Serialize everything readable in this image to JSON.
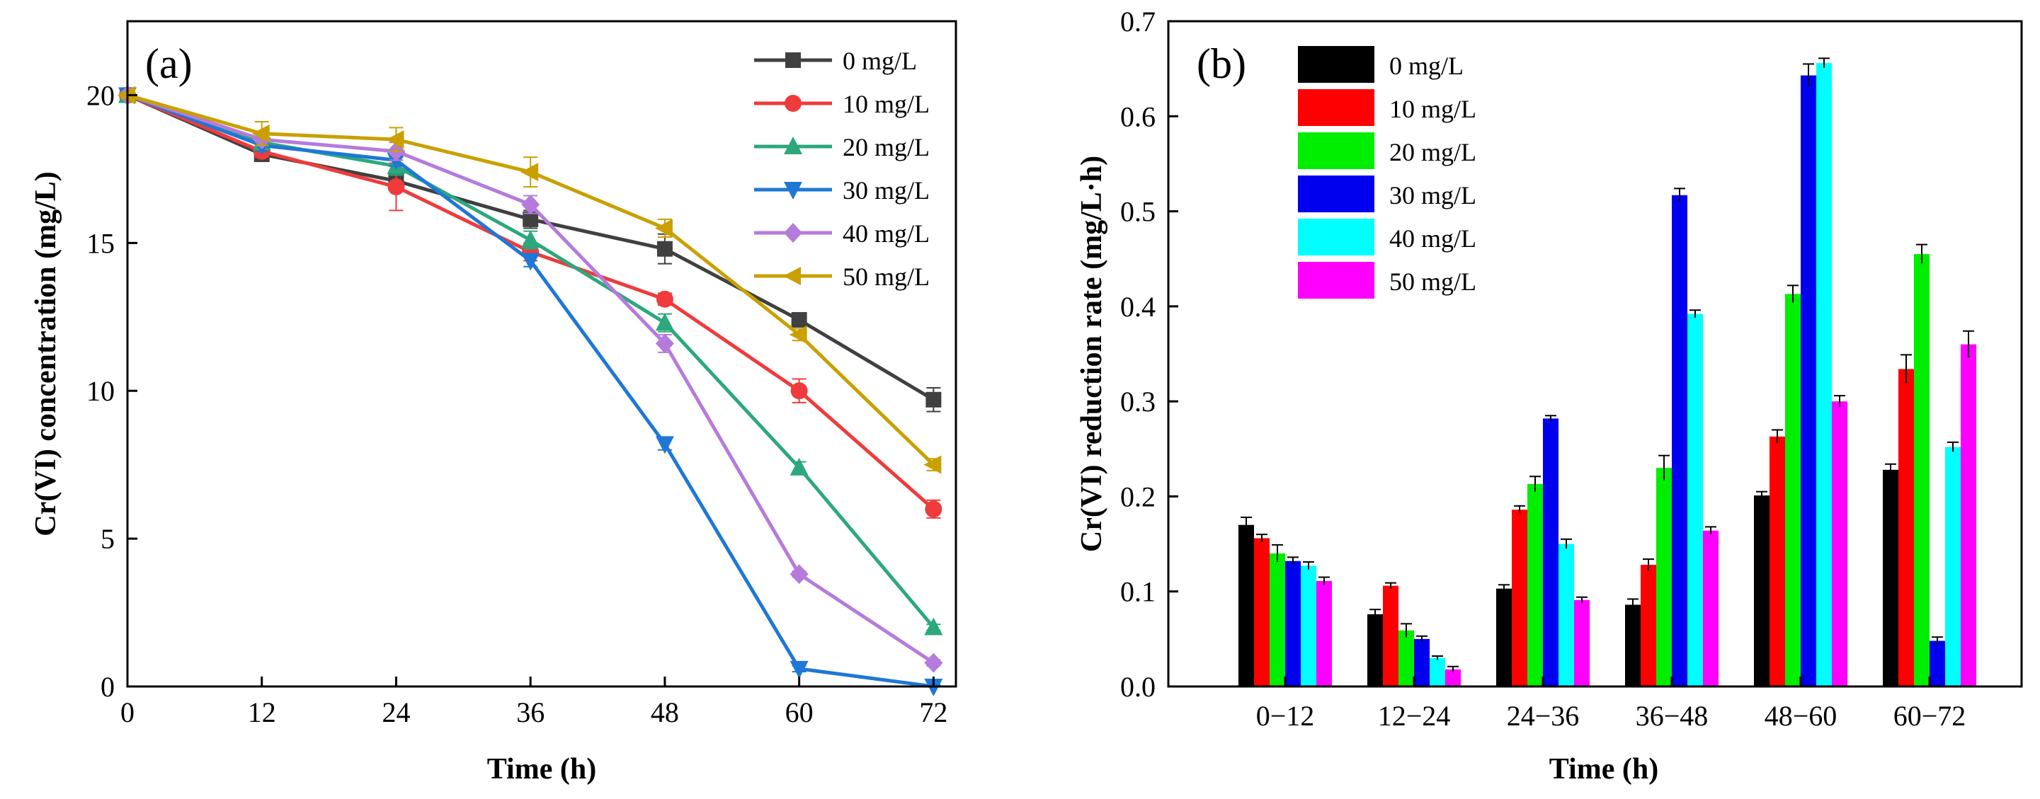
{
  "chart_data": [
    {
      "type": "line",
      "panel_label": "(a)",
      "title": "",
      "xlabel": "Time (h)",
      "ylabel": "Cr(VI) concentration (mg/L)",
      "xlim": [
        0,
        74
      ],
      "ylim": [
        0,
        22.5
      ],
      "xticks": [
        0,
        12,
        24,
        36,
        48,
        60,
        72
      ],
      "yticks": [
        0,
        5,
        10,
        15,
        20
      ],
      "x": [
        0,
        12,
        24,
        36,
        48,
        60,
        72
      ],
      "legend_position": "top-right",
      "series": [
        {
          "name": "0 mg/L",
          "color": "#404040",
          "marker": "square",
          "values": [
            20.0,
            18.0,
            17.1,
            15.8,
            14.8,
            12.4,
            9.7
          ],
          "errors": [
            0.15,
            0.2,
            0.25,
            0.3,
            0.5,
            0.2,
            0.4
          ]
        },
        {
          "name": "10 mg/L",
          "color": "#ef3b3b",
          "marker": "circle",
          "values": [
            20.0,
            18.1,
            16.9,
            14.7,
            13.1,
            10.0,
            6.0
          ],
          "errors": [
            0.15,
            0.2,
            0.8,
            0.3,
            0.2,
            0.4,
            0.3
          ]
        },
        {
          "name": "20 mg/L",
          "color": "#2ca87c",
          "marker": "triangle-up",
          "values": [
            20.0,
            18.4,
            17.6,
            15.1,
            12.3,
            7.4,
            2.0
          ],
          "errors": [
            0.15,
            0.2,
            0.3,
            0.3,
            0.3,
            0.2,
            0.1
          ]
        },
        {
          "name": "30 mg/L",
          "color": "#1f77d6",
          "marker": "triangle-down",
          "values": [
            20.0,
            18.3,
            17.8,
            14.4,
            8.2,
            0.6,
            0.0
          ],
          "errors": [
            0.1,
            0.2,
            0.2,
            0.2,
            0.2,
            0.1,
            0.05
          ]
        },
        {
          "name": "40 mg/L",
          "color": "#b57bdc",
          "marker": "diamond",
          "values": [
            20.0,
            18.5,
            18.1,
            16.3,
            11.6,
            3.8,
            0.8
          ],
          "errors": [
            0.1,
            0.2,
            0.3,
            0.3,
            0.3,
            0.1,
            0.1
          ]
        },
        {
          "name": "50 mg/L",
          "color": "#c9a000",
          "marker": "triangle-left",
          "values": [
            20.0,
            18.7,
            18.5,
            17.4,
            15.5,
            11.9,
            7.5
          ],
          "errors": [
            0.1,
            0.4,
            0.4,
            0.5,
            0.3,
            0.2,
            0.2
          ]
        }
      ]
    },
    {
      "type": "bar",
      "panel_label": "(b)",
      "title": "",
      "xlabel": "Time (h)",
      "ylabel": "Cr(VI) reduction rate (mg/L·h)",
      "ylim": [
        0,
        0.7
      ],
      "yticks": [
        "0.0",
        "0.1",
        "0.2",
        "0.3",
        "0.4",
        "0.5",
        "0.6",
        "0.7"
      ],
      "categories": [
        "0−12",
        "12−24",
        "24−36",
        "36−48",
        "48−60",
        "60−72"
      ],
      "legend_position": "top-left",
      "series": [
        {
          "name": "0 mg/L",
          "color": "#000000",
          "values": [
            0.17,
            0.076,
            0.103,
            0.086,
            0.201,
            0.228
          ],
          "errors": [
            0.008,
            0.005,
            0.004,
            0.006,
            0.004,
            0.006
          ]
        },
        {
          "name": "10 mg/L",
          "color": "#ff0000",
          "values": [
            0.156,
            0.106,
            0.186,
            0.128,
            0.263,
            0.334
          ],
          "errors": [
            0.004,
            0.003,
            0.004,
            0.006,
            0.007,
            0.015
          ]
        },
        {
          "name": "20 mg/L",
          "color": "#00ee00",
          "values": [
            0.14,
            0.059,
            0.213,
            0.23,
            0.413,
            0.455
          ],
          "errors": [
            0.009,
            0.007,
            0.008,
            0.013,
            0.009,
            0.01
          ]
        },
        {
          "name": "30 mg/L",
          "color": "#0000ee",
          "values": [
            0.132,
            0.05,
            0.282,
            0.517,
            0.643,
            0.048
          ],
          "errors": [
            0.004,
            0.003,
            0.003,
            0.007,
            0.012,
            0.004
          ]
        },
        {
          "name": "40 mg/L",
          "color": "#00ffff",
          "values": [
            0.127,
            0.03,
            0.15,
            0.392,
            0.656,
            0.252
          ],
          "errors": [
            0.004,
            0.002,
            0.005,
            0.004,
            0.005,
            0.005
          ]
        },
        {
          "name": "50 mg/L",
          "color": "#ff00ff",
          "values": [
            0.111,
            0.018,
            0.091,
            0.164,
            0.3,
            0.36
          ],
          "errors": [
            0.004,
            0.003,
            0.003,
            0.004,
            0.006,
            0.014
          ]
        }
      ]
    }
  ]
}
